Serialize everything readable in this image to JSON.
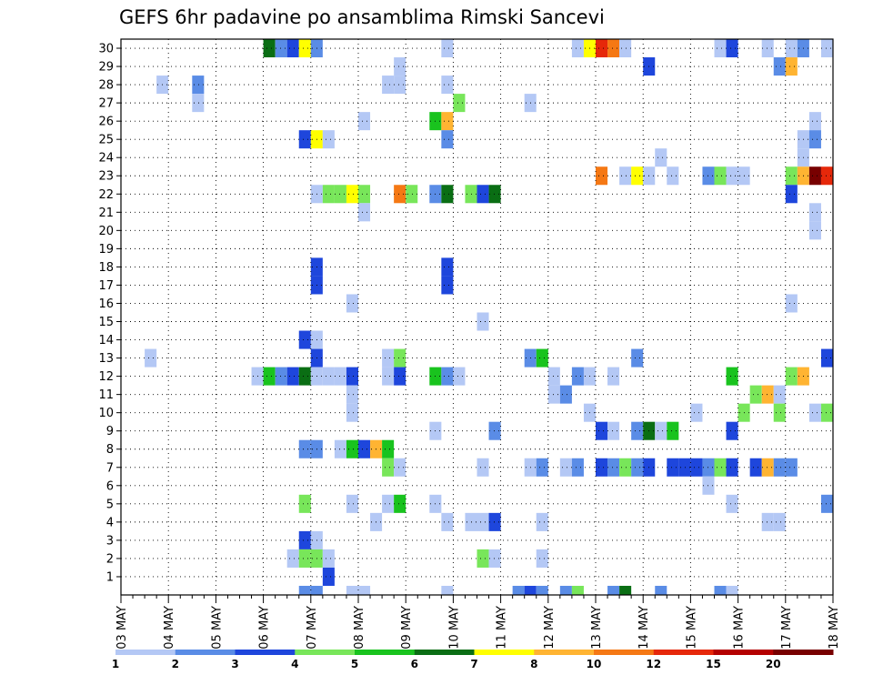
{
  "chart_data": {
    "type": "heatmap",
    "title": "GEFS 6hr padavine po ansamblima Rimski Sancevi",
    "x_tick_labels": [
      "03 MAY",
      "04 MAY",
      "05 MAY",
      "06 MAY",
      "07 MAY",
      "08 MAY",
      "09 MAY",
      "10 MAY",
      "11 MAY",
      "12 MAY",
      "13 MAY",
      "14 MAY",
      "15 MAY",
      "16 MAY",
      "17 MAY",
      "18 MAY"
    ],
    "y_tick_labels": [
      "1",
      "2",
      "3",
      "4",
      "5",
      "6",
      "7",
      "8",
      "9",
      "10",
      "11",
      "12",
      "13",
      "14",
      "15",
      "16",
      "17",
      "18",
      "19",
      "20",
      "21",
      "22",
      "23",
      "24",
      "25",
      "26",
      "27",
      "28",
      "29",
      "30"
    ],
    "x_steps_per_day": 4,
    "grid": true,
    "color_scale": {
      "thresholds": [
        1,
        2,
        3,
        4,
        5,
        6,
        7,
        8,
        10,
        12,
        15,
        20
      ],
      "threshold_labels": [
        "1",
        "2",
        "3",
        "4",
        "5",
        "6",
        "7",
        "8",
        "10",
        "12",
        "15",
        "20"
      ],
      "colors": [
        "#b4c8f5",
        "#5a8ce6",
        "#1e46dc",
        "#78e65a",
        "#19c31e",
        "#0a6e14",
        "#ffff00",
        "#ffb432",
        "#f57814",
        "#e6280a",
        "#b40000",
        "#780000"
      ]
    },
    "cells": [
      {
        "r": 30,
        "c": 12,
        "v": 6
      },
      {
        "r": 30,
        "c": 13,
        "v": 2
      },
      {
        "r": 30,
        "c": 14,
        "v": 3
      },
      {
        "r": 30,
        "c": 15,
        "v": 7
      },
      {
        "r": 30,
        "c": 16,
        "v": 2
      },
      {
        "r": 30,
        "c": 27,
        "v": 1
      },
      {
        "r": 30,
        "c": 38,
        "v": 1
      },
      {
        "r": 30,
        "c": 39,
        "v": 7
      },
      {
        "r": 30,
        "c": 40,
        "v": 12
      },
      {
        "r": 30,
        "c": 41,
        "v": 10
      },
      {
        "r": 30,
        "c": 42,
        "v": 1
      },
      {
        "r": 30,
        "c": 50,
        "v": 1
      },
      {
        "r": 30,
        "c": 51,
        "v": 3
      },
      {
        "r": 30,
        "c": 54,
        "v": 1
      },
      {
        "r": 30,
        "c": 56,
        "v": 1
      },
      {
        "r": 30,
        "c": 57,
        "v": 2
      },
      {
        "r": 30,
        "c": 59,
        "v": 1
      },
      {
        "r": 29,
        "c": 23,
        "v": 1
      },
      {
        "r": 29,
        "c": 44,
        "v": 3
      },
      {
        "r": 29,
        "c": 55,
        "v": 2
      },
      {
        "r": 29,
        "c": 56,
        "v": 8
      },
      {
        "r": 28,
        "c": 3,
        "v": 1
      },
      {
        "r": 28,
        "c": 6,
        "v": 2
      },
      {
        "r": 28,
        "c": 22,
        "v": 1
      },
      {
        "r": 28,
        "c": 23,
        "v": 1
      },
      {
        "r": 28,
        "c": 27,
        "v": 1
      },
      {
        "r": 27,
        "c": 6,
        "v": 1
      },
      {
        "r": 27,
        "c": 28,
        "v": 4
      },
      {
        "r": 27,
        "c": 34,
        "v": 1
      },
      {
        "r": 26,
        "c": 20,
        "v": 1
      },
      {
        "r": 26,
        "c": 26,
        "v": 5
      },
      {
        "r": 26,
        "c": 27,
        "v": 8
      },
      {
        "r": 26,
        "c": 58,
        "v": 1
      },
      {
        "r": 25,
        "c": 15,
        "v": 3
      },
      {
        "r": 25,
        "c": 16,
        "v": 7
      },
      {
        "r": 25,
        "c": 17,
        "v": 1
      },
      {
        "r": 25,
        "c": 27,
        "v": 2
      },
      {
        "r": 25,
        "c": 57,
        "v": 1
      },
      {
        "r": 25,
        "c": 58,
        "v": 2
      },
      {
        "r": 24,
        "c": 45,
        "v": 1
      },
      {
        "r": 24,
        "c": 57,
        "v": 1
      },
      {
        "r": 23,
        "c": 49,
        "v": 2
      },
      {
        "r": 23,
        "c": 50,
        "v": 4
      },
      {
        "r": 23,
        "c": 51,
        "v": 1
      },
      {
        "r": 23,
        "c": 40,
        "v": 10
      },
      {
        "r": 23,
        "c": 42,
        "v": 1
      },
      {
        "r": 23,
        "c": 43,
        "v": 7
      },
      {
        "r": 23,
        "c": 44,
        "v": 1
      },
      {
        "r": 23,
        "c": 46,
        "v": 1
      },
      {
        "r": 23,
        "c": 52,
        "v": 1
      },
      {
        "r": 23,
        "c": 56,
        "v": 4
      },
      {
        "r": 23,
        "c": 57,
        "v": 8
      },
      {
        "r": 23,
        "c": 58,
        "v": 20
      },
      {
        "r": 23,
        "c": 59,
        "v": 12
      },
      {
        "r": 22,
        "c": 16,
        "v": 1
      },
      {
        "r": 22,
        "c": 17,
        "v": 4
      },
      {
        "r": 22,
        "c": 18,
        "v": 4
      },
      {
        "r": 22,
        "c": 19,
        "v": 7
      },
      {
        "r": 22,
        "c": 20,
        "v": 4
      },
      {
        "r": 22,
        "c": 23,
        "v": 10
      },
      {
        "r": 22,
        "c": 24,
        "v": 4
      },
      {
        "r": 22,
        "c": 26,
        "v": 2
      },
      {
        "r": 22,
        "c": 27,
        "v": 6
      },
      {
        "r": 22,
        "c": 29,
        "v": 4
      },
      {
        "r": 22,
        "c": 30,
        "v": 3
      },
      {
        "r": 22,
        "c": 31,
        "v": 6
      },
      {
        "r": 22,
        "c": 56,
        "v": 3
      },
      {
        "r": 21,
        "c": 20,
        "v": 1
      },
      {
        "r": 21,
        "c": 58,
        "v": 1
      },
      {
        "r": 20,
        "c": 58,
        "v": 1
      },
      {
        "r": 18,
        "c": 16,
        "v": 3
      },
      {
        "r": 18,
        "c": 27,
        "v": 3
      },
      {
        "r": 17,
        "c": 16,
        "v": 3
      },
      {
        "r": 17,
        "c": 27,
        "v": 3
      },
      {
        "r": 16,
        "c": 19,
        "v": 1
      },
      {
        "r": 16,
        "c": 56,
        "v": 1
      },
      {
        "r": 15,
        "c": 30,
        "v": 1
      },
      {
        "r": 14,
        "c": 15,
        "v": 3
      },
      {
        "r": 14,
        "c": 16,
        "v": 1
      },
      {
        "r": 13,
        "c": 2,
        "v": 1
      },
      {
        "r": 13,
        "c": 16,
        "v": 3
      },
      {
        "r": 13,
        "c": 22,
        "v": 1
      },
      {
        "r": 13,
        "c": 23,
        "v": 4
      },
      {
        "r": 13,
        "c": 34,
        "v": 2
      },
      {
        "r": 13,
        "c": 35,
        "v": 5
      },
      {
        "r": 13,
        "c": 43,
        "v": 2
      },
      {
        "r": 13,
        "c": 59,
        "v": 3
      },
      {
        "r": 12,
        "c": 11,
        "v": 1
      },
      {
        "r": 12,
        "c": 12,
        "v": 5
      },
      {
        "r": 12,
        "c": 13,
        "v": 2
      },
      {
        "r": 12,
        "c": 14,
        "v": 3
      },
      {
        "r": 12,
        "c": 15,
        "v": 6
      },
      {
        "r": 12,
        "c": 16,
        "v": 1
      },
      {
        "r": 12,
        "c": 17,
        "v": 1
      },
      {
        "r": 12,
        "c": 18,
        "v": 1
      },
      {
        "r": 12,
        "c": 19,
        "v": 3
      },
      {
        "r": 12,
        "c": 22,
        "v": 1
      },
      {
        "r": 12,
        "c": 23,
        "v": 3
      },
      {
        "r": 12,
        "c": 26,
        "v": 5
      },
      {
        "r": 12,
        "c": 27,
        "v": 2
      },
      {
        "r": 12,
        "c": 28,
        "v": 1
      },
      {
        "r": 12,
        "c": 36,
        "v": 1
      },
      {
        "r": 12,
        "c": 38,
        "v": 2
      },
      {
        "r": 12,
        "c": 39,
        "v": 1
      },
      {
        "r": 12,
        "c": 41,
        "v": 1
      },
      {
        "r": 12,
        "c": 51,
        "v": 5
      },
      {
        "r": 12,
        "c": 56,
        "v": 4
      },
      {
        "r": 12,
        "c": 57,
        "v": 8
      },
      {
        "r": 11,
        "c": 19,
        "v": 1
      },
      {
        "r": 11,
        "c": 36,
        "v": 1
      },
      {
        "r": 11,
        "c": 37,
        "v": 2
      },
      {
        "r": 11,
        "c": 53,
        "v": 4
      },
      {
        "r": 11,
        "c": 54,
        "v": 8
      },
      {
        "r": 11,
        "c": 55,
        "v": 1
      },
      {
        "r": 10,
        "c": 19,
        "v": 1
      },
      {
        "r": 10,
        "c": 39,
        "v": 1
      },
      {
        "r": 10,
        "c": 48,
        "v": 1
      },
      {
        "r": 10,
        "c": 52,
        "v": 4
      },
      {
        "r": 10,
        "c": 55,
        "v": 4
      },
      {
        "r": 10,
        "c": 58,
        "v": 1
      },
      {
        "r": 10,
        "c": 59,
        "v": 4
      },
      {
        "r": 10,
        "c": 60,
        "v": 1
      },
      {
        "r": 9,
        "c": 26,
        "v": 1
      },
      {
        "r": 9,
        "c": 31,
        "v": 2
      },
      {
        "r": 9,
        "c": 40,
        "v": 3
      },
      {
        "r": 9,
        "c": 41,
        "v": 1
      },
      {
        "r": 9,
        "c": 43,
        "v": 2
      },
      {
        "r": 9,
        "c": 44,
        "v": 6
      },
      {
        "r": 9,
        "c": 45,
        "v": 1
      },
      {
        "r": 9,
        "c": 46,
        "v": 5
      },
      {
        "r": 9,
        "c": 51,
        "v": 3
      },
      {
        "r": 8,
        "c": 15,
        "v": 2
      },
      {
        "r": 8,
        "c": 16,
        "v": 2
      },
      {
        "r": 8,
        "c": 18,
        "v": 1
      },
      {
        "r": 8,
        "c": 19,
        "v": 5
      },
      {
        "r": 8,
        "c": 20,
        "v": 3
      },
      {
        "r": 8,
        "c": 21,
        "v": 8
      },
      {
        "r": 8,
        "c": 22,
        "v": 5
      },
      {
        "r": 7,
        "c": 22,
        "v": 4
      },
      {
        "r": 7,
        "c": 23,
        "v": 1
      },
      {
        "r": 7,
        "c": 30,
        "v": 1
      },
      {
        "r": 7,
        "c": 34,
        "v": 1
      },
      {
        "r": 7,
        "c": 35,
        "v": 2
      },
      {
        "r": 7,
        "c": 37,
        "v": 1
      },
      {
        "r": 7,
        "c": 38,
        "v": 2
      },
      {
        "r": 7,
        "c": 40,
        "v": 3
      },
      {
        "r": 7,
        "c": 41,
        "v": 2
      },
      {
        "r": 7,
        "c": 42,
        "v": 4
      },
      {
        "r": 7,
        "c": 43,
        "v": 2
      },
      {
        "r": 7,
        "c": 44,
        "v": 3
      },
      {
        "r": 7,
        "c": 46,
        "v": 3
      },
      {
        "r": 7,
        "c": 47,
        "v": 3
      },
      {
        "r": 7,
        "c": 48,
        "v": 3
      },
      {
        "r": 7,
        "c": 49,
        "v": 2
      },
      {
        "r": 7,
        "c": 50,
        "v": 4
      },
      {
        "r": 7,
        "c": 51,
        "v": 3
      },
      {
        "r": 7,
        "c": 53,
        "v": 3
      },
      {
        "r": 7,
        "c": 54,
        "v": 8
      },
      {
        "r": 7,
        "c": 55,
        "v": 2
      },
      {
        "r": 7,
        "c": 56,
        "v": 2
      },
      {
        "r": 6,
        "c": 49,
        "v": 1
      },
      {
        "r": 5,
        "c": 15,
        "v": 4
      },
      {
        "r": 5,
        "c": 19,
        "v": 1
      },
      {
        "r": 5,
        "c": 22,
        "v": 1
      },
      {
        "r": 5,
        "c": 23,
        "v": 5
      },
      {
        "r": 5,
        "c": 26,
        "v": 1
      },
      {
        "r": 5,
        "c": 51,
        "v": 1
      },
      {
        "r": 5,
        "c": 59,
        "v": 2
      },
      {
        "r": 4,
        "c": 21,
        "v": 1
      },
      {
        "r": 4,
        "c": 27,
        "v": 1
      },
      {
        "r": 4,
        "c": 29,
        "v": 1
      },
      {
        "r": 4,
        "c": 30,
        "v": 1
      },
      {
        "r": 4,
        "c": 31,
        "v": 3
      },
      {
        "r": 4,
        "c": 35,
        "v": 1
      },
      {
        "r": 4,
        "c": 54,
        "v": 1
      },
      {
        "r": 4,
        "c": 55,
        "v": 1
      },
      {
        "r": 3,
        "c": 15,
        "v": 3
      },
      {
        "r": 3,
        "c": 16,
        "v": 1
      },
      {
        "r": 2,
        "c": 14,
        "v": 1
      },
      {
        "r": 2,
        "c": 15,
        "v": 4
      },
      {
        "r": 2,
        "c": 16,
        "v": 4
      },
      {
        "r": 2,
        "c": 17,
        "v": 1
      },
      {
        "r": 2,
        "c": 30,
        "v": 4
      },
      {
        "r": 2,
        "c": 31,
        "v": 1
      },
      {
        "r": 2,
        "c": 35,
        "v": 1
      },
      {
        "r": 1,
        "c": 17,
        "v": 3
      },
      {
        "r": 0,
        "c": 15,
        "v": 2
      },
      {
        "r": 0,
        "c": 16,
        "v": 2
      },
      {
        "r": 0,
        "c": 19,
        "v": 1
      },
      {
        "r": 0,
        "c": 20,
        "v": 1
      },
      {
        "r": 0,
        "c": 27,
        "v": 1
      },
      {
        "r": 0,
        "c": 33,
        "v": 2
      },
      {
        "r": 0,
        "c": 34,
        "v": 3
      },
      {
        "r": 0,
        "c": 35,
        "v": 2
      },
      {
        "r": 0,
        "c": 37,
        "v": 2
      },
      {
        "r": 0,
        "c": 38,
        "v": 4
      },
      {
        "r": 0,
        "c": 41,
        "v": 2
      },
      {
        "r": 0,
        "c": 42,
        "v": 6
      },
      {
        "r": 0,
        "c": 45,
        "v": 2
      },
      {
        "r": 0,
        "c": 50,
        "v": 2
      },
      {
        "r": 0,
        "c": 51,
        "v": 1
      }
    ]
  }
}
